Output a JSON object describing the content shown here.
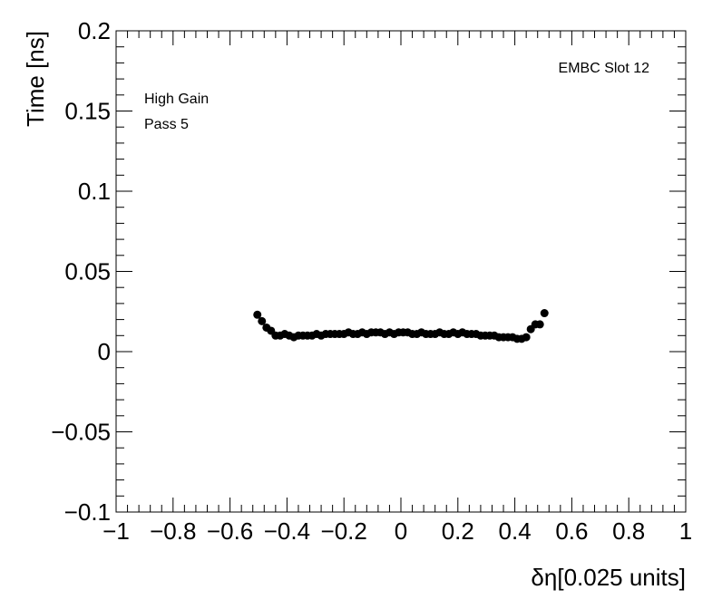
{
  "chart_data": {
    "type": "scatter",
    "xlabel": "δη[0.025 units]",
    "ylabel": "Time [ns]",
    "annotations": [
      "EMBC Slot 12",
      "High Gain",
      "Pass 5"
    ],
    "color": "#000000",
    "x": [
      -0.504,
      -0.488,
      -0.472,
      -0.456,
      -0.44,
      -0.424,
      -0.408,
      -0.392,
      -0.376,
      -0.36,
      -0.344,
      -0.328,
      -0.312,
      -0.296,
      -0.28,
      -0.264,
      -0.248,
      -0.232,
      -0.216,
      -0.2,
      -0.184,
      -0.168,
      -0.152,
      -0.136,
      -0.12,
      -0.104,
      -0.088,
      -0.072,
      -0.056,
      -0.04,
      -0.024,
      -0.008,
      0.008,
      0.024,
      0.04,
      0.056,
      0.072,
      0.088,
      0.104,
      0.12,
      0.136,
      0.152,
      0.168,
      0.184,
      0.2,
      0.216,
      0.232,
      0.248,
      0.264,
      0.28,
      0.296,
      0.312,
      0.328,
      0.344,
      0.36,
      0.376,
      0.392,
      0.408,
      0.424,
      0.44,
      0.456,
      0.472,
      0.488,
      0.504
    ],
    "values": [
      0.023,
      0.019,
      0.015,
      0.013,
      0.01,
      0.01,
      0.011,
      0.01,
      0.009,
      0.01,
      0.01,
      0.01,
      0.01,
      0.011,
      0.01,
      0.011,
      0.011,
      0.011,
      0.011,
      0.011,
      0.012,
      0.011,
      0.011,
      0.012,
      0.011,
      0.012,
      0.012,
      0.012,
      0.011,
      0.012,
      0.011,
      0.012,
      0.012,
      0.012,
      0.011,
      0.011,
      0.012,
      0.011,
      0.011,
      0.011,
      0.012,
      0.011,
      0.011,
      0.012,
      0.011,
      0.012,
      0.011,
      0.011,
      0.011,
      0.01,
      0.01,
      0.01,
      0.01,
      0.009,
      0.009,
      0.009,
      0.009,
      0.008,
      0.008,
      0.009,
      0.014,
      0.017,
      0.017,
      0.024
    ],
    "xlim": [
      -1,
      1
    ],
    "xticks": [
      {
        "value": -1,
        "label": "−1"
      },
      {
        "value": -0.8,
        "label": "−0.8"
      },
      {
        "value": -0.6,
        "label": "−0.6"
      },
      {
        "value": -0.4,
        "label": "−0.4"
      },
      {
        "value": -0.2,
        "label": "−0.2"
      },
      0,
      0.2,
      0.4,
      0.6,
      0.8,
      1
    ],
    "ylim": [
      -0.1,
      0.2
    ],
    "yticks": [
      {
        "value": -0.1,
        "label": "−0.1"
      },
      {
        "value": -0.05,
        "label": "−0.05"
      },
      0,
      0.05,
      0.1,
      0.15,
      0.2
    ]
  }
}
